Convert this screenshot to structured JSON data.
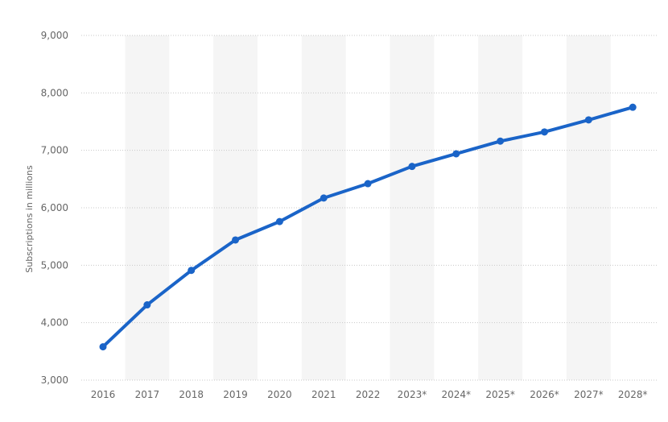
{
  "chart_data": {
    "type": "line",
    "title": "",
    "xlabel": "",
    "ylabel": "Subscriptions in millions",
    "ylim": [
      3000,
      9000
    ],
    "yticks": [
      3000,
      4000,
      5000,
      6000,
      7000,
      8000,
      9000
    ],
    "ytick_labels": [
      "3,000",
      "4,000",
      "5,000",
      "6,000",
      "7,000",
      "8,000",
      "9,000"
    ],
    "categories": [
      "2016",
      "2017",
      "2018",
      "2019",
      "2020",
      "2021",
      "2022",
      "2023*",
      "2024*",
      "2025*",
      "2026*",
      "2027*",
      "2028*"
    ],
    "series": [
      {
        "values": [
          3580,
          4310,
          4910,
          5440,
          5760,
          6170,
          6420,
          6720,
          6940,
          7160,
          7320,
          7530,
          7750
        ]
      }
    ],
    "grid": true,
    "legend": "none",
    "colors": {
      "line": "#1a64c8",
      "grid": "#c8c8c8",
      "band": "#f5f5f5",
      "text": "#666666"
    }
  }
}
